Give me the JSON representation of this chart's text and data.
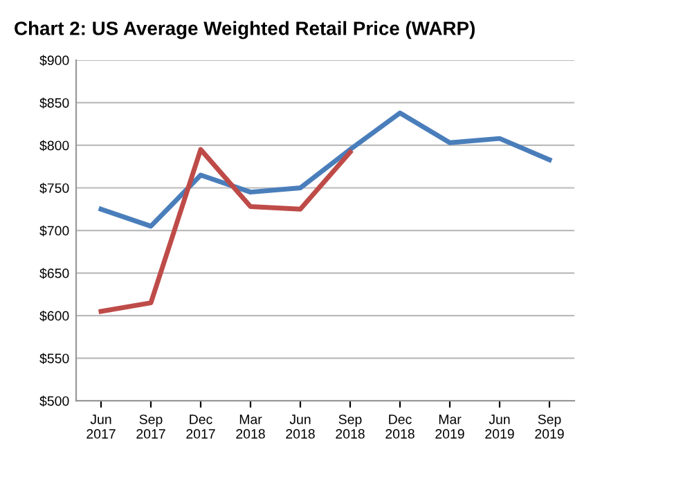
{
  "chart_data": {
    "type": "line",
    "title": "Chart 2: US Average Weighted Retail Price (WARP)",
    "categories": [
      "Jun\n2017",
      "Sep\n2017",
      "Dec\n2017",
      "Mar\n2018",
      "Jun\n2018",
      "Sep\n2018",
      "Dec\n2018",
      "Mar\n2019",
      "Jun\n2019",
      "Sep\n2019"
    ],
    "series": [
      {
        "color": "#4a7ebb",
        "values": [
          725,
          705,
          765,
          745,
          750,
          795,
          838,
          803,
          808,
          783
        ]
      },
      {
        "color": "#be4b48",
        "values": [
          605,
          615,
          795,
          728,
          725,
          792,
          null,
          null,
          null,
          null
        ]
      }
    ],
    "ylim": [
      500,
      900
    ],
    "yticks": [
      {
        "value": 500,
        "label": "$500"
      },
      {
        "value": 550,
        "label": "$550"
      },
      {
        "value": 600,
        "label": "$600"
      },
      {
        "value": 650,
        "label": "$650"
      },
      {
        "value": 700,
        "label": "$700"
      },
      {
        "value": 750,
        "label": "$750"
      },
      {
        "value": 800,
        "label": "$800"
      },
      {
        "value": 850,
        "label": "$850"
      },
      {
        "value": 900,
        "label": "$900"
      }
    ],
    "grid": "y",
    "marker": "none",
    "line_style": "solid"
  }
}
